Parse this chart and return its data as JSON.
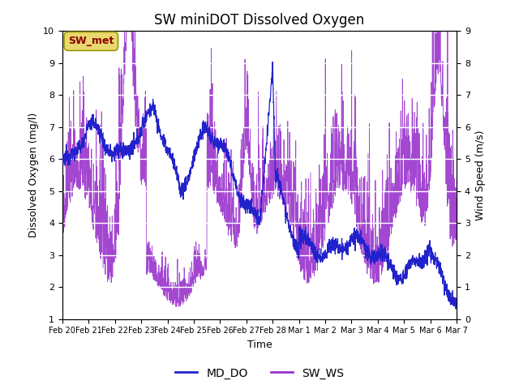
{
  "title": "SW miniDOT Dissolved Oxygen",
  "ylabel_left": "Dissolved Oxygen (mg/l)",
  "ylabel_right": "Wind Speed (m/s)",
  "xlabel": "Time",
  "annotation_text": "SW_met",
  "annotation_color": "#8B0000",
  "annotation_bg": "#E8D870",
  "legend_labels": [
    "MD_DO",
    "SW_WS"
  ],
  "line_color_do": "#2222CC",
  "line_color_ws": "#9933CC",
  "ylim_left": [
    1.0,
    10.0
  ],
  "ylim_right": [
    0.0,
    9.0
  ],
  "yticks_left": [
    1.0,
    2.0,
    3.0,
    4.0,
    5.0,
    6.0,
    7.0,
    8.0,
    9.0,
    10.0
  ],
  "yticks_right": [
    0.0,
    1.0,
    2.0,
    3.0,
    4.0,
    5.0,
    6.0,
    7.0,
    8.0,
    9.0
  ],
  "plot_bg_color": "#E8E8E8",
  "grid_color": "#FFFFFF",
  "title_fontsize": 12,
  "label_fontsize": 9,
  "tick_fontsize": 8,
  "legend_fontsize": 10,
  "tick_labels": [
    "Feb 20",
    "Feb 21",
    "Feb 22",
    "Feb 23",
    "Feb 24",
    "Feb 25",
    "Feb 26",
    "Feb 27",
    "Feb 28",
    "Mar 1",
    "Mar 2",
    "Mar 3",
    "Mar 4",
    "Mar 5",
    "Mar 6",
    "Mar 7"
  ],
  "n_days": 15
}
